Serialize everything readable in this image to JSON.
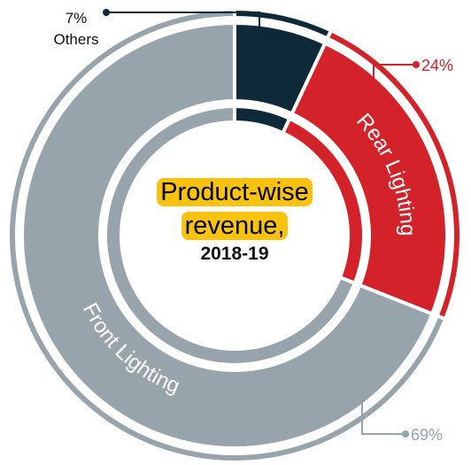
{
  "chart_data": {
    "type": "donut",
    "title": "Product-wise revenue,",
    "subtitle": "2018-19",
    "categories": [
      "Others",
      "Rear Lighting",
      "Front Lighting"
    ],
    "values": [
      7,
      24,
      69
    ],
    "value_labels": [
      "7%",
      "24%",
      "69%"
    ],
    "colors": [
      "#0e2a38",
      "#d3222a",
      "#97a4ab"
    ]
  }
}
